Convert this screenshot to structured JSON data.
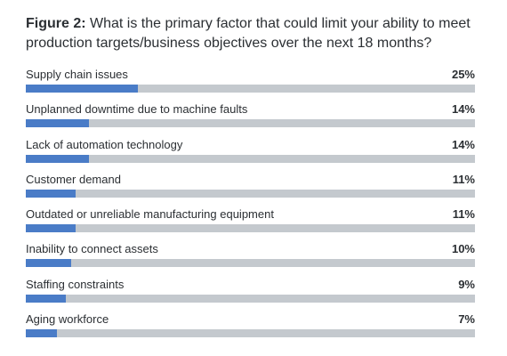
{
  "title": {
    "prefix": "Figure 2:",
    "text": " What is the primary factor that could limit your ability to meet production targets/business objectives over the next 18 months?"
  },
  "colors": {
    "bar_fill": "#4a7cc7",
    "bar_track": "#c4c9ce"
  },
  "chart_data": {
    "type": "bar",
    "orientation": "horizontal",
    "title": "Figure 2: What is the primary factor that could limit your ability to meet production targets/business objectives over the next 18 months?",
    "categories": [
      "Supply chain issues",
      "Unplanned downtime due to machine faults",
      "Lack of automation technology",
      "Customer demand",
      "Outdated or unreliable manufacturing equipment",
      "Inability to connect assets",
      "Staffing constraints",
      "Aging workforce"
    ],
    "values": [
      25,
      14,
      14,
      11,
      11,
      10,
      9,
      7
    ],
    "value_labels": [
      "25%",
      "14%",
      "14%",
      "11%",
      "11%",
      "10%",
      "9%",
      "7%"
    ],
    "xlim": [
      0,
      100
    ],
    "grid": false,
    "legend": "none"
  }
}
